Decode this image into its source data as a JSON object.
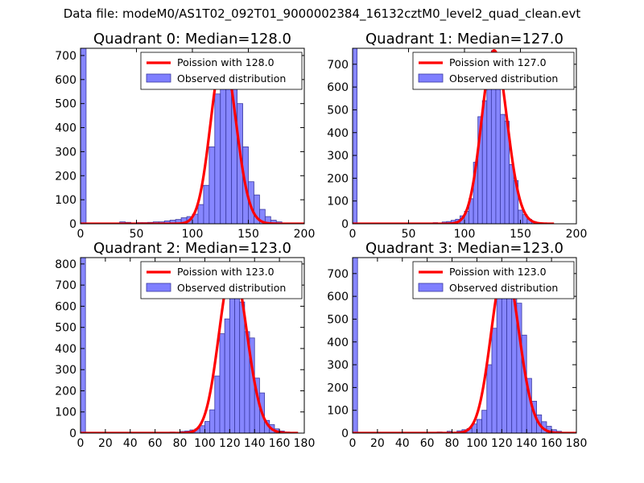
{
  "figure": {
    "title": "Data file: modeM0/AS1T02_092T01_9000002384_16132cztM0_level2_quad_clean.evt"
  },
  "colors": {
    "bar_fill": "#7f7fff",
    "bar_edge": "#3a3aa0",
    "fit_line": "#ff0000",
    "axes": "#000000"
  },
  "chart_data": [
    {
      "type": "bar",
      "title": "Quadrant 0: Median=128.0",
      "xlim": [
        0,
        200
      ],
      "ylim": [
        0,
        730
      ],
      "xticks": [
        0,
        50,
        100,
        150,
        200
      ],
      "yticks": [
        0,
        100,
        200,
        300,
        400,
        500,
        600,
        700
      ],
      "bin_width": 5,
      "bins": [
        [
          0,
          730
        ],
        [
          35,
          8
        ],
        [
          40,
          6
        ],
        [
          50,
          5
        ],
        [
          55,
          5
        ],
        [
          60,
          6
        ],
        [
          65,
          8
        ],
        [
          70,
          8
        ],
        [
          75,
          12
        ],
        [
          80,
          15
        ],
        [
          85,
          18
        ],
        [
          90,
          25
        ],
        [
          95,
          30
        ],
        [
          100,
          40
        ],
        [
          105,
          80
        ],
        [
          110,
          160
        ],
        [
          115,
          320
        ],
        [
          120,
          540
        ],
        [
          125,
          640
        ],
        [
          130,
          700
        ],
        [
          135,
          600
        ],
        [
          140,
          500
        ],
        [
          145,
          320
        ],
        [
          150,
          175
        ],
        [
          155,
          120
        ],
        [
          160,
          60
        ],
        [
          165,
          30
        ],
        [
          170,
          15
        ],
        [
          175,
          8
        ],
        [
          180,
          3
        ]
      ],
      "poisson_mean": 128.0,
      "poisson_peak": 700,
      "fit_range": [
        0,
        200
      ],
      "legend": [
        "Poission with 128.0",
        "Observed distribution"
      ]
    },
    {
      "type": "bar",
      "title": "Quadrant 1: Median=127.0",
      "xlim": [
        0,
        200
      ],
      "ylim": [
        0,
        770
      ],
      "xticks": [
        0,
        50,
        100,
        150,
        200
      ],
      "yticks": [
        0,
        100,
        200,
        300,
        400,
        500,
        600,
        700
      ],
      "bin_width": 4,
      "bins": [
        [
          0,
          770
        ],
        [
          72,
          5
        ],
        [
          80,
          8
        ],
        [
          84,
          10
        ],
        [
          88,
          15
        ],
        [
          92,
          20
        ],
        [
          96,
          35
        ],
        [
          100,
          55
        ],
        [
          104,
          110
        ],
        [
          108,
          270
        ],
        [
          112,
          470
        ],
        [
          116,
          540
        ],
        [
          120,
          680
        ],
        [
          124,
          760
        ],
        [
          128,
          620
        ],
        [
          132,
          480
        ],
        [
          136,
          450
        ],
        [
          140,
          260
        ],
        [
          144,
          190
        ],
        [
          148,
          60
        ],
        [
          152,
          40
        ],
        [
          156,
          20
        ],
        [
          160,
          10
        ],
        [
          164,
          5
        ],
        [
          168,
          3
        ]
      ],
      "poisson_mean": 127.0,
      "poisson_peak": 760,
      "fit_range": [
        0,
        180
      ],
      "legend": [
        "Poission with 127.0",
        "Observed distribution"
      ]
    },
    {
      "type": "bar",
      "title": "Quadrant 2: Median=123.0",
      "xlim": [
        0,
        180
      ],
      "ylim": [
        0,
        830
      ],
      "xticks": [
        0,
        20,
        40,
        60,
        80,
        100,
        120,
        140,
        160,
        180
      ],
      "yticks": [
        0,
        100,
        200,
        300,
        400,
        500,
        600,
        700,
        800
      ],
      "bin_width": 4,
      "bins": [
        [
          0,
          830
        ],
        [
          72,
          5
        ],
        [
          80,
          8
        ],
        [
          84,
          10
        ],
        [
          88,
          15
        ],
        [
          92,
          20
        ],
        [
          96,
          35
        ],
        [
          100,
          55
        ],
        [
          104,
          110
        ],
        [
          108,
          270
        ],
        [
          112,
          470
        ],
        [
          116,
          540
        ],
        [
          120,
          680
        ],
        [
          124,
          760
        ],
        [
          128,
          620
        ],
        [
          132,
          480
        ],
        [
          136,
          450
        ],
        [
          140,
          260
        ],
        [
          144,
          190
        ],
        [
          148,
          60
        ],
        [
          152,
          40
        ],
        [
          156,
          20
        ],
        [
          160,
          10
        ],
        [
          164,
          5
        ],
        [
          168,
          3
        ]
      ],
      "poisson_mean": 123.0,
      "poisson_peak": 790,
      "fit_range": [
        0,
        175
      ],
      "legend": [
        "Poission with 123.0",
        "Observed distribution"
      ]
    },
    {
      "type": "bar",
      "title": "Quadrant 3: Median=123.0",
      "xlim": [
        0,
        180
      ],
      "ylim": [
        0,
        770
      ],
      "xticks": [
        0,
        20,
        40,
        60,
        80,
        100,
        120,
        140,
        160,
        180
      ],
      "yticks": [
        0,
        100,
        200,
        300,
        400,
        500,
        600,
        700
      ],
      "bin_width": 4,
      "bins": [
        [
          0,
          770
        ],
        [
          68,
          5
        ],
        [
          76,
          8
        ],
        [
          84,
          10
        ],
        [
          88,
          15
        ],
        [
          92,
          20
        ],
        [
          96,
          40
        ],
        [
          100,
          60
        ],
        [
          104,
          100
        ],
        [
          108,
          300
        ],
        [
          112,
          460
        ],
        [
          116,
          600
        ],
        [
          120,
          700
        ],
        [
          124,
          680
        ],
        [
          128,
          750
        ],
        [
          132,
          570
        ],
        [
          136,
          430
        ],
        [
          140,
          240
        ],
        [
          144,
          140
        ],
        [
          148,
          80
        ],
        [
          152,
          50
        ],
        [
          156,
          30
        ],
        [
          160,
          15
        ],
        [
          164,
          8
        ],
        [
          168,
          3
        ]
      ],
      "poisson_mean": 123.0,
      "poisson_peak": 735,
      "fit_range": [
        0,
        180
      ],
      "legend": [
        "Poission with 123.0",
        "Observed distribution"
      ]
    }
  ]
}
